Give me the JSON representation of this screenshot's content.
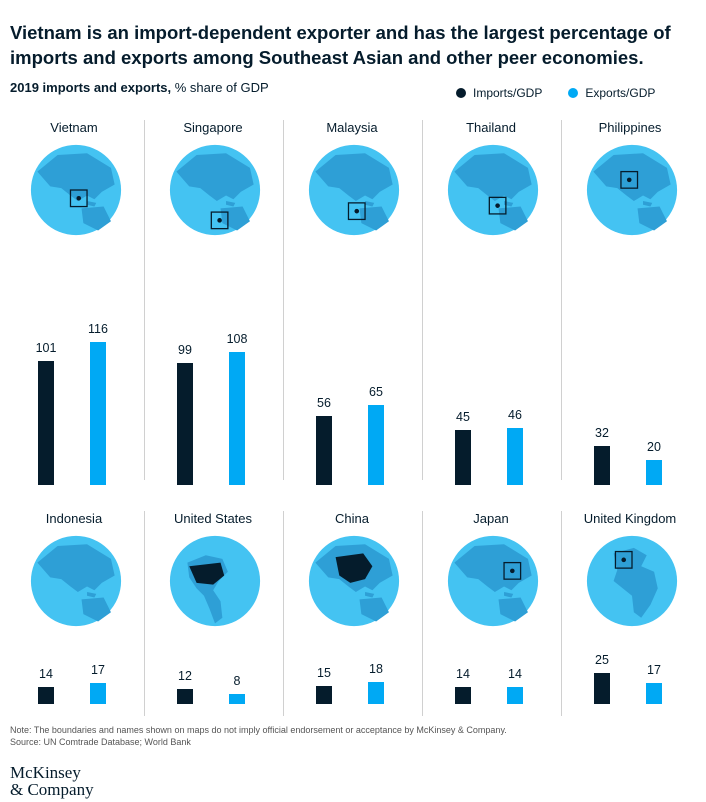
{
  "headline": "Vietnam is an import-dependent exporter and has the largest percentage of imports and exports among Southeast Asian and other peer economies.",
  "subtitle_bold": "2019 imports and exports,",
  "subtitle_rest": " % share of GDP",
  "legend": {
    "imports": "Imports/GDP",
    "exports": "Exports/GDP"
  },
  "colors": {
    "imports": "#051c2c",
    "exports": "#00a9f4",
    "globe": "#44c3f2",
    "land": "#2e9fd6",
    "highlight": "#051c2c"
  },
  "footnote_1": "Note: The boundaries and names shown on maps do not imply official endorsement or acceptance by McKinsey & Company.",
  "footnote_2": "Source: UN Comtrade Database; World Bank",
  "logo_line1": "McKinsey",
  "logo_line2": "& Company",
  "chart_data": {
    "type": "bar",
    "title": "2019 imports and exports, % share of GDP",
    "ylim": [
      0,
      120
    ],
    "series_names": [
      "Imports/GDP",
      "Exports/GDP"
    ],
    "panels": [
      {
        "country": "Vietnam",
        "imports": 101,
        "exports": 116,
        "globe_icon": "globe-asia-icon"
      },
      {
        "country": "Singapore",
        "imports": 99,
        "exports": 108,
        "globe_icon": "globe-asia-icon"
      },
      {
        "country": "Malaysia",
        "imports": 56,
        "exports": 65,
        "globe_icon": "globe-asia-icon"
      },
      {
        "country": "Thailand",
        "imports": 45,
        "exports": 46,
        "globe_icon": "globe-asia-icon"
      },
      {
        "country": "Philippines",
        "imports": 32,
        "exports": 20,
        "globe_icon": "globe-asia-icon"
      },
      {
        "country": "Indonesia",
        "imports": 14,
        "exports": 17,
        "globe_icon": "globe-asia-icon"
      },
      {
        "country": "United States",
        "imports": 12,
        "exports": 8,
        "globe_icon": "globe-americas-icon"
      },
      {
        "country": "China",
        "imports": 15,
        "exports": 18,
        "globe_icon": "globe-asia-icon"
      },
      {
        "country": "Japan",
        "imports": 14,
        "exports": 14,
        "globe_icon": "globe-asia-icon"
      },
      {
        "country": "United Kingdom",
        "imports": 25,
        "exports": 17,
        "globe_icon": "globe-europe-icon"
      }
    ]
  }
}
